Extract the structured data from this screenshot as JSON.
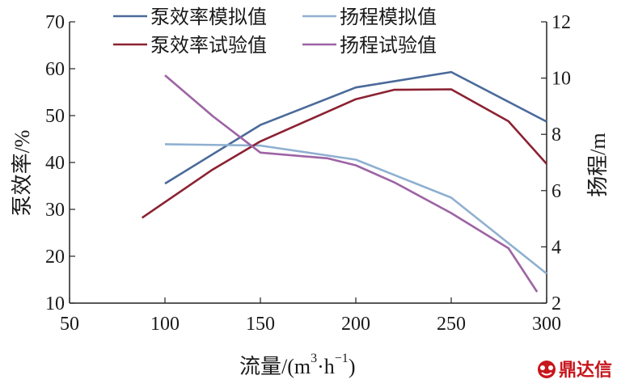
{
  "chart_data": {
    "type": "line",
    "xlabel": "流量/(m³·h⁻¹)",
    "xlabel_parts": {
      "main": "流量/(m",
      "sup1": "3",
      "dot": "·h",
      "sup2": "−1",
      "close": ")"
    },
    "ylabel_left": "泵效率/%",
    "ylabel_right": "扬程/m",
    "xlim": [
      50,
      300
    ],
    "ylim_left": [
      10,
      70
    ],
    "ylim_right": [
      2,
      12
    ],
    "x_ticks": [
      "50",
      "100",
      "150",
      "200",
      "250",
      "300"
    ],
    "y_left_ticks": [
      "10",
      "20",
      "30",
      "40",
      "50",
      "60",
      "70"
    ],
    "y_right_ticks": [
      "2",
      "4",
      "6",
      "8",
      "10",
      "12"
    ],
    "grid": false,
    "legend_position": "top",
    "series": [
      {
        "name": "泵效率模拟值",
        "axis": "left",
        "color": "#4a6a9a",
        "points": [
          [
            100,
            35.5
          ],
          [
            150,
            48
          ],
          [
            200,
            56
          ],
          [
            250,
            59.3
          ],
          [
            300,
            48.7
          ]
        ]
      },
      {
        "name": "扬程模拟值",
        "axis": "right",
        "color": "#8fb0d0",
        "points": [
          [
            100,
            7.65
          ],
          [
            150,
            7.6
          ],
          [
            200,
            7.1
          ],
          [
            250,
            5.75
          ],
          [
            300,
            3.05
          ]
        ]
      },
      {
        "name": "泵效率试验值",
        "axis": "left",
        "color": "#8b2232",
        "points": [
          [
            88,
            28.2
          ],
          [
            125,
            38.5
          ],
          [
            150,
            44.5
          ],
          [
            200,
            53.5
          ],
          [
            220,
            55.5
          ],
          [
            250,
            55.6
          ],
          [
            280,
            48.8
          ],
          [
            300,
            39.7
          ]
        ]
      },
      {
        "name": "扬程试验值",
        "axis": "right",
        "color": "#9d64a4",
        "points": [
          [
            100,
            10.1
          ],
          [
            125,
            8.65
          ],
          [
            150,
            7.35
          ],
          [
            185,
            7.15
          ],
          [
            200,
            6.9
          ],
          [
            220,
            6.3
          ],
          [
            250,
            5.2
          ],
          [
            280,
            3.95
          ],
          [
            295,
            2.4
          ]
        ]
      }
    ]
  },
  "watermark": {
    "text": "鼎达信",
    "icon": "logo-icon"
  }
}
